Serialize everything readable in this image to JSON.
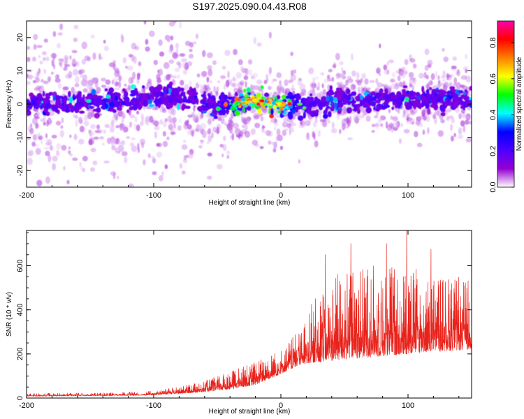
{
  "title": "S197.2025.090.04.43.R08",
  "chart_data": [
    {
      "type": "heatmap",
      "xlabel": "Height of straight line (km)",
      "ylabel": "Frequency (Hz)",
      "xlim": [
        -200,
        150
      ],
      "ylim": [
        -25,
        25
      ],
      "x_ticks": [
        -200,
        -100,
        0,
        100
      ],
      "x_tick_labels": [
        "-200",
        "-100",
        "0",
        "100"
      ],
      "y_ticks": [
        -20,
        -10,
        0,
        10,
        20
      ],
      "y_tick_labels": [
        "-20",
        "-10",
        "0",
        "10",
        "20"
      ],
      "colorbar": {
        "label": "Normalized spectral amplitude",
        "range": [
          0,
          0.92
        ],
        "ticks": [
          0.0,
          0.2,
          0.4,
          0.6,
          0.8
        ],
        "tick_labels": [
          "0.0",
          "0.2",
          "0.4",
          "0.6",
          "0.8"
        ],
        "colors": [
          "#ffffff",
          "#9400d3",
          "#4b00ff",
          "#0000ff",
          "#00ffff",
          "#00ff00",
          "#ffff00",
          "#ff7f00",
          "#ff0000",
          "#ff00aa"
        ]
      },
      "band": {
        "center_hz": [
          {
            "x": -200,
            "f": 0
          },
          {
            "x": -150,
            "f": 0.5
          },
          {
            "x": -100,
            "f": 2
          },
          {
            "x": -75,
            "f": 2.5
          },
          {
            "x": -50,
            "f": -1
          },
          {
            "x": -40,
            "f": 0
          },
          {
            "x": -30,
            "f": 0.5
          },
          {
            "x": -15,
            "f": 1
          },
          {
            "x": 0,
            "f": -0.5
          },
          {
            "x": 20,
            "f": 0
          },
          {
            "x": 50,
            "f": 1
          },
          {
            "x": 100,
            "f": 1.5
          },
          {
            "x": 150,
            "f": 1.5
          }
        ],
        "main_halfwidth_hz": 5,
        "peak_amplitude_x_km": -15,
        "peak_amplitude": 0.9
      }
    },
    {
      "type": "line",
      "xlabel": "Height of straight line (km)",
      "ylabel": "SNR (10 * v/v)",
      "xlim": [
        -200,
        150
      ],
      "ylim": [
        0,
        760
      ],
      "x_ticks": [
        -200,
        -100,
        0,
        100
      ],
      "x_tick_labels": [
        "-200",
        "-100",
        "0",
        "100"
      ],
      "y_ticks": [
        0,
        200,
        400,
        600
      ],
      "y_tick_labels": [
        "0",
        "200",
        "400",
        "600"
      ],
      "color": "#e8231c",
      "envelope": {
        "x": [
          -200,
          -150,
          -110,
          -100,
          -80,
          -60,
          -40,
          -20,
          0,
          15,
          25,
          40,
          60,
          80,
          100,
          120,
          150
        ],
        "baseline": [
          8,
          10,
          12,
          14,
          20,
          28,
          40,
          60,
          110,
          150,
          160,
          170,
          180,
          190,
          200,
          210,
          220
        ],
        "spread": [
          12,
          14,
          16,
          20,
          30,
          50,
          80,
          110,
          110,
          160,
          280,
          380,
          420,
          420,
          400,
          360,
          320
        ]
      },
      "notable_peaks": [
        {
          "x": 35,
          "y": 650
        },
        {
          "x": 55,
          "y": 700
        },
        {
          "x": 83,
          "y": 700
        },
        {
          "x": 99,
          "y": 760
        },
        {
          "x": 118,
          "y": 675
        }
      ]
    }
  ]
}
